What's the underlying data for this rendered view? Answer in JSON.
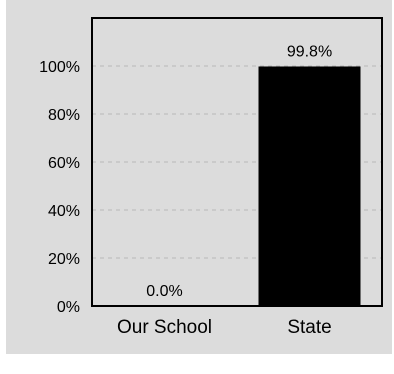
{
  "colors": {
    "background": "#dcdcdc",
    "plot_area": "#dcdcdc",
    "bar": "#000000",
    "grid": "#b8b8b8"
  },
  "chart_data": {
    "type": "bar",
    "title": "",
    "xlabel": "",
    "ylabel": "",
    "categories": [
      "Our School",
      "State"
    ],
    "values": [
      0.0,
      99.8
    ],
    "data_labels": [
      "0.0%",
      "99.8%"
    ],
    "ylim": [
      0,
      120
    ],
    "yticks": [
      0,
      20,
      40,
      60,
      80,
      100
    ],
    "ytick_labels": [
      "0%",
      "20%",
      "40%",
      "60%",
      "80%",
      "100%"
    ],
    "grid": "horizontal dashed",
    "legend": "none"
  }
}
